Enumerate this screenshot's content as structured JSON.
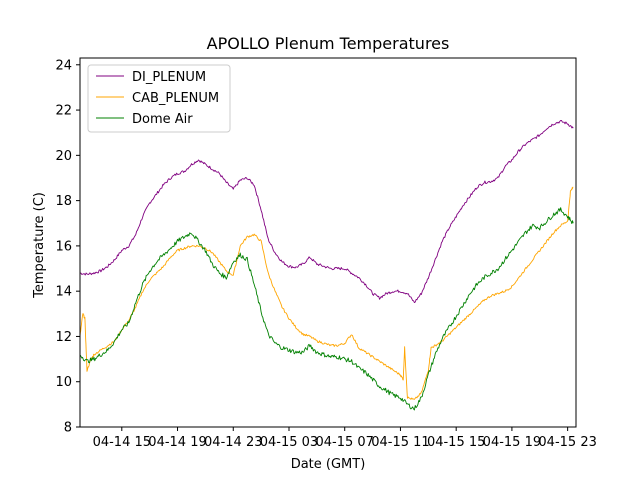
{
  "chart_data": {
    "type": "line",
    "title": "APOLLO Plenum Temperatures",
    "xlabel": "Date (GMT)",
    "ylabel": "Temperature (C)",
    "x_unit": "hours since 04-14 12:00 GMT",
    "xlim": [
      0,
      35.6
    ],
    "ylim": [
      8,
      24.3
    ],
    "xticks": [
      {
        "x": 3,
        "label": "04-14 15"
      },
      {
        "x": 7,
        "label": "04-14 19"
      },
      {
        "x": 11,
        "label": "04-14 23"
      },
      {
        "x": 15,
        "label": "04-15 03"
      },
      {
        "x": 19,
        "label": "04-15 07"
      },
      {
        "x": 23,
        "label": "04-15 11"
      },
      {
        "x": 27,
        "label": "04-15 15"
      },
      {
        "x": 31,
        "label": "04-15 19"
      },
      {
        "x": 35,
        "label": "04-15 23"
      }
    ],
    "yticks": [
      8,
      10,
      12,
      14,
      16,
      18,
      20,
      22,
      24
    ],
    "legend_position": "top-left",
    "series": [
      {
        "name": "DI_PLENUM",
        "color": "#800080",
        "x": [
          0,
          0.5,
          1,
          1.5,
          2,
          2.5,
          3,
          3.5,
          4,
          4.5,
          5,
          5.5,
          6,
          6.5,
          7,
          7.5,
          8,
          8.5,
          9,
          9.5,
          10,
          10.5,
          11,
          11.5,
          12,
          12.5,
          13,
          13.5,
          14,
          14.5,
          15,
          15.5,
          16,
          16.5,
          17,
          17.5,
          18,
          18.5,
          19,
          19.5,
          20,
          20.5,
          21,
          21.5,
          22,
          22.5,
          23,
          23.5,
          24,
          24.5,
          25,
          25.5,
          26,
          26.5,
          27,
          27.5,
          28,
          28.5,
          29,
          29.5,
          30,
          30.5,
          31,
          31.5,
          32,
          32.5,
          33,
          33.5,
          34,
          34.5,
          35,
          35.4
        ],
        "values": [
          14.8,
          14.75,
          14.8,
          14.9,
          15.1,
          15.4,
          15.8,
          16.0,
          16.5,
          17.3,
          17.9,
          18.3,
          18.7,
          19.0,
          19.2,
          19.3,
          19.6,
          19.8,
          19.6,
          19.4,
          19.2,
          18.8,
          18.5,
          18.9,
          19.0,
          18.7,
          17.6,
          16.3,
          15.7,
          15.3,
          15.1,
          15.05,
          15.2,
          15.5,
          15.2,
          15.1,
          15.0,
          15.0,
          15.0,
          14.8,
          14.6,
          14.3,
          13.9,
          13.7,
          13.9,
          14.0,
          14.0,
          13.9,
          13.5,
          13.9,
          14.6,
          15.4,
          16.2,
          16.8,
          17.3,
          17.8,
          18.2,
          18.6,
          18.8,
          18.85,
          19.0,
          19.5,
          19.8,
          20.2,
          20.5,
          20.7,
          20.9,
          21.2,
          21.4,
          21.5,
          21.4,
          21.2
        ]
      },
      {
        "name": "CAB_PLENUM",
        "color": "#FFA500",
        "x": [
          0,
          0.2,
          0.35,
          0.5,
          0.8,
          1,
          1.5,
          2,
          2.5,
          3,
          3.5,
          4,
          4.5,
          5,
          5.5,
          6,
          6.5,
          7,
          7.5,
          8,
          8.5,
          9,
          9.5,
          10,
          10.5,
          11,
          11.5,
          12,
          12.5,
          13,
          13.5,
          14,
          14.5,
          15,
          15.5,
          16,
          16.5,
          17,
          17.5,
          18,
          18.5,
          19,
          19.5,
          20,
          20.5,
          21,
          21.5,
          22,
          22.5,
          23,
          23.2,
          23.3,
          23.5,
          24,
          24.5,
          25,
          25.2,
          25.5,
          26,
          26.5,
          27,
          27.5,
          28,
          28.5,
          29,
          29.5,
          30,
          30.5,
          31,
          31.5,
          32,
          32.5,
          33,
          33.5,
          34,
          34.5,
          35,
          35.2,
          35.4
        ],
        "values": [
          12.0,
          13.0,
          12.8,
          10.5,
          11.0,
          11.2,
          11.4,
          11.6,
          11.8,
          12.3,
          12.7,
          13.3,
          14.0,
          14.5,
          14.8,
          15.1,
          15.5,
          15.8,
          15.9,
          16.0,
          16.0,
          15.9,
          15.7,
          15.3,
          14.9,
          14.7,
          16.0,
          16.4,
          16.5,
          16.2,
          14.8,
          14.0,
          13.3,
          12.8,
          12.4,
          12.1,
          12.0,
          11.8,
          11.7,
          11.6,
          11.6,
          11.7,
          12.1,
          11.5,
          11.3,
          11.1,
          10.9,
          10.7,
          10.5,
          10.3,
          10.1,
          11.5,
          9.3,
          9.2,
          9.5,
          10.5,
          11.5,
          11.6,
          11.8,
          12.1,
          12.4,
          12.7,
          13.0,
          13.3,
          13.6,
          13.8,
          13.9,
          14.0,
          14.2,
          14.6,
          15.0,
          15.4,
          15.8,
          16.2,
          16.6,
          16.9,
          17.1,
          18.4,
          18.6
        ]
      },
      {
        "name": "Dome Air",
        "color": "#008000",
        "x": [
          0,
          0.5,
          1,
          1.5,
          2,
          2.5,
          3,
          3.5,
          4,
          4.5,
          5,
          5.5,
          6,
          6.5,
          7,
          7.5,
          8,
          8.5,
          9,
          9.5,
          10,
          10.5,
          11,
          11.5,
          12,
          12.5,
          13,
          13.5,
          14,
          14.5,
          15,
          15.5,
          16,
          16.5,
          17,
          17.5,
          18,
          18.5,
          19,
          19.5,
          20,
          20.5,
          21,
          21.5,
          22,
          22.5,
          23,
          23.5,
          24,
          24.5,
          25,
          25.5,
          26,
          26.5,
          27,
          27.5,
          28,
          28.5,
          29,
          29.5,
          30,
          30.5,
          31,
          31.5,
          32,
          32.5,
          33,
          33.5,
          34,
          34.5,
          35,
          35.4
        ],
        "values": [
          11.2,
          10.9,
          11.0,
          11.2,
          11.4,
          11.8,
          12.3,
          12.6,
          13.5,
          14.3,
          14.9,
          15.3,
          15.6,
          15.9,
          16.2,
          16.4,
          16.6,
          16.2,
          15.8,
          15.2,
          14.8,
          14.6,
          15.3,
          15.6,
          15.4,
          14.3,
          13.1,
          12.1,
          11.7,
          11.5,
          11.4,
          11.3,
          11.3,
          11.6,
          11.3,
          11.2,
          11.1,
          11.1,
          11.0,
          10.9,
          10.6,
          10.4,
          10.1,
          9.8,
          9.6,
          9.4,
          9.3,
          9.0,
          8.8,
          9.3,
          10.3,
          11.2,
          11.9,
          12.4,
          12.9,
          13.4,
          13.9,
          14.3,
          14.6,
          14.8,
          15.0,
          15.4,
          15.8,
          16.2,
          16.6,
          16.9,
          16.8,
          17.1,
          17.4,
          17.6,
          17.3,
          17.0
        ]
      }
    ]
  }
}
